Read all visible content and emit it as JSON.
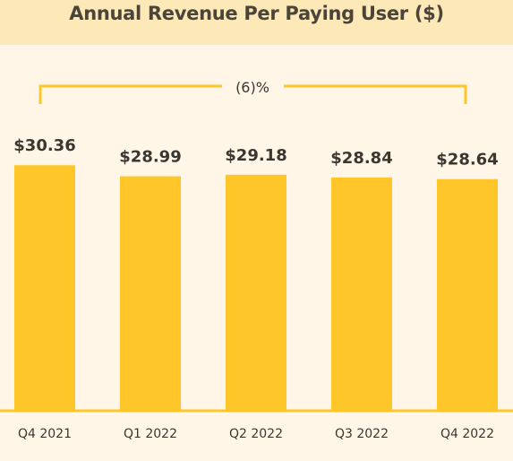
{
  "chart_data": {
    "type": "bar",
    "title": "Annual Revenue Per Paying User ($)",
    "categories": [
      "Q4 2021",
      "Q1 2022",
      "Q2 2022",
      "Q3 2022",
      "Q4 2022"
    ],
    "values": [
      30.36,
      28.99,
      29.18,
      28.84,
      28.64
    ],
    "value_labels": [
      "$30.36",
      "$28.99",
      "$29.18",
      "$28.84",
      "$28.64"
    ],
    "annotation": "(6)%",
    "xlabel": "",
    "ylabel": "",
    "ylim": [
      0,
      32.5
    ],
    "grid": false,
    "legend": "none",
    "colors": {
      "bar": "#ffc629",
      "header_bg": "#fde9b8",
      "page_bg": "#fff6e7",
      "text": "#3a3630"
    }
  }
}
